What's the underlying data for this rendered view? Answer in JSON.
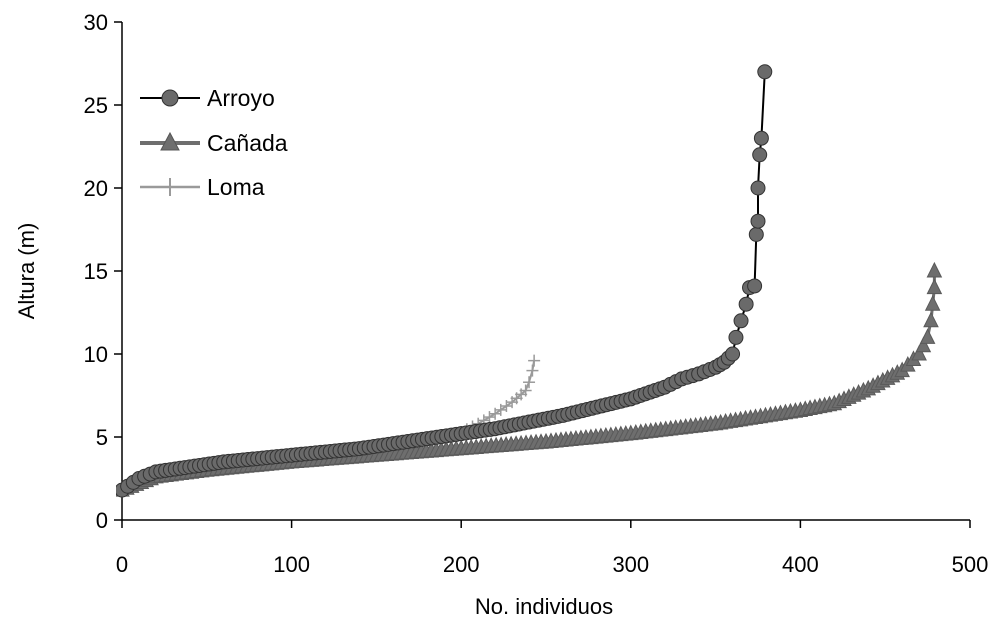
{
  "chart_data": {
    "type": "line",
    "title": "",
    "xlabel": "No. individuos",
    "ylabel": "Altura (m)",
    "xlim": [
      0,
      500
    ],
    "ylim": [
      0,
      30
    ],
    "xticks": [
      "0",
      "100",
      "200",
      "300",
      "400",
      "500"
    ],
    "yticks": [
      "0",
      "5",
      "10",
      "15",
      "20",
      "25",
      "30"
    ],
    "grid": false,
    "legend_position": "top-left",
    "series": [
      {
        "name": "Arroyo",
        "color": "#000000",
        "marker": "circle",
        "points": [
          [
            0,
            1.8
          ],
          [
            10,
            2.5
          ],
          [
            20,
            2.9
          ],
          [
            40,
            3.2
          ],
          [
            60,
            3.5
          ],
          [
            80,
            3.7
          ],
          [
            100,
            3.9
          ],
          [
            120,
            4.1
          ],
          [
            140,
            4.3
          ],
          [
            160,
            4.6
          ],
          [
            180,
            4.9
          ],
          [
            200,
            5.2
          ],
          [
            220,
            5.5
          ],
          [
            240,
            5.9
          ],
          [
            260,
            6.3
          ],
          [
            280,
            6.8
          ],
          [
            300,
            7.3
          ],
          [
            320,
            8.0
          ],
          [
            330,
            8.5
          ],
          [
            340,
            8.8
          ],
          [
            350,
            9.2
          ],
          [
            355,
            9.5
          ],
          [
            360,
            10.0
          ],
          [
            362,
            11.0
          ],
          [
            365,
            12.0
          ],
          [
            368,
            13.0
          ],
          [
            370,
            14.0
          ],
          [
            373,
            14.1
          ],
          [
            374,
            17.2
          ],
          [
            375,
            18.0
          ],
          [
            375,
            20.0
          ],
          [
            376,
            22.0
          ],
          [
            377,
            23.0
          ],
          [
            379,
            27.0
          ]
        ]
      },
      {
        "name": "Cañada",
        "color": "#6e6e6e",
        "marker": "triangle",
        "points": [
          [
            0,
            1.8
          ],
          [
            20,
            2.6
          ],
          [
            50,
            3.0
          ],
          [
            100,
            3.5
          ],
          [
            150,
            3.9
          ],
          [
            200,
            4.3
          ],
          [
            250,
            4.7
          ],
          [
            300,
            5.2
          ],
          [
            350,
            5.8
          ],
          [
            400,
            6.6
          ],
          [
            420,
            7.0
          ],
          [
            440,
            7.9
          ],
          [
            460,
            9.0
          ],
          [
            470,
            10.0
          ],
          [
            475,
            11.0
          ],
          [
            477,
            12.0
          ],
          [
            478,
            13.0
          ],
          [
            479,
            14.0
          ],
          [
            479,
            15.0
          ]
        ]
      },
      {
        "name": "Loma",
        "color": "#9a9a9a",
        "marker": "plus",
        "points": [
          [
            0,
            1.8
          ],
          [
            10,
            2.4
          ],
          [
            25,
            2.8
          ],
          [
            50,
            3.1
          ],
          [
            75,
            3.4
          ],
          [
            100,
            3.7
          ],
          [
            125,
            4.1
          ],
          [
            150,
            4.4
          ],
          [
            175,
            4.8
          ],
          [
            200,
            5.3
          ],
          [
            210,
            5.8
          ],
          [
            220,
            6.4
          ],
          [
            230,
            7.1
          ],
          [
            238,
            7.8
          ],
          [
            240,
            8.3
          ],
          [
            242,
            9.0
          ],
          [
            243,
            9.6
          ]
        ]
      }
    ]
  }
}
